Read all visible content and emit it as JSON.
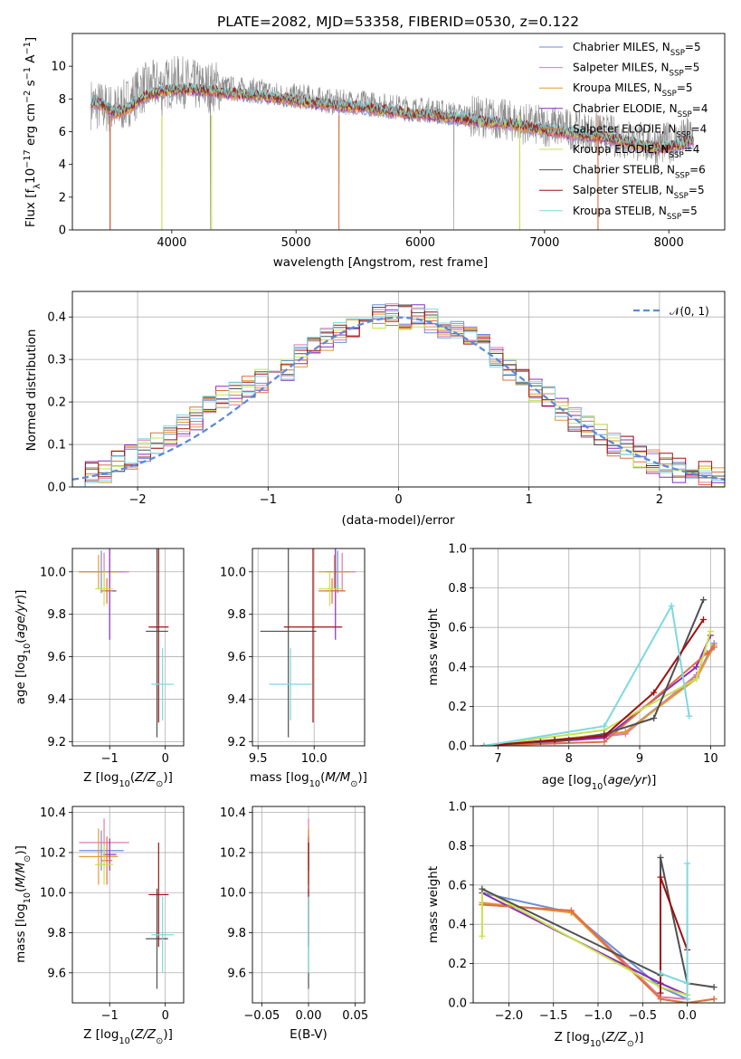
{
  "figure": {
    "title": "PLATE=2082, MJD=53358, FIBERID=0530, z=0.122"
  },
  "model_colors": {
    "Chabrier MILES": "#6a8ed8",
    "Salpeter MILES": "#e07ab0",
    "Kroupa MILES": "#e09a30",
    "Chabrier ELODIE": "#8a2bbf",
    "Salpeter ELODIE": "#e07040",
    "Kroupa ELODIE": "#c6e34a",
    "Chabrier STELIB": "#505050",
    "Salpeter STELIB": "#a01010",
    "Kroupa STELIB": "#7ed8e0"
  },
  "chart_data": [
    {
      "id": "spectrum",
      "type": "line",
      "title": "PLATE=2082, MJD=53358, FIBERID=0530, z=0.122",
      "xlabel": "wavelength [Angstrom, rest frame]",
      "ylabel": "Flux [f_λ 10^-17 erg cm^-2 s^-1 A^-1]",
      "xlim": [
        3200,
        8450
      ],
      "ylim": [
        0,
        12
      ],
      "xticks": [
        "4000",
        "5000",
        "6000",
        "7000",
        "8000"
      ],
      "yticks": [
        "0",
        "2",
        "4",
        "6",
        "8",
        "10"
      ],
      "grid": false,
      "legend_position": "top-right",
      "legend": [
        "Chabrier MILES, N_SSP=5",
        "Salpeter MILES, N_SSP=5",
        "Kroupa MILES, N_SSP=5",
        "Chabrier ELODIE, N_SSP=4",
        "Salpeter ELODIE, N_SSP=4",
        "Kroupa ELODIE, N_SSP=4",
        "Chabrier STELIB, N_SSP=6",
        "Salpeter STELIB, N_SSP=5",
        "Kroupa STELIB, N_SSP=5"
      ],
      "data_series": {
        "wavelength": [
          3350,
          3450,
          3550,
          3650,
          3750,
          3850,
          3950,
          4050,
          4150,
          4250,
          4350,
          4500,
          4700,
          4900,
          5100,
          5300,
          5500,
          5700,
          5900,
          6100,
          6300,
          6500,
          6700,
          6900,
          7100,
          7300,
          7500,
          7700,
          7900,
          8100,
          8200
        ],
        "flux": [
          7.7,
          7.5,
          7.3,
          7.8,
          8.6,
          8.8,
          8.9,
          9.1,
          8.9,
          8.7,
          8.8,
          8.6,
          8.5,
          8.2,
          8.1,
          7.8,
          7.8,
          7.6,
          7.4,
          7.3,
          7.0,
          6.9,
          6.7,
          6.4,
          6.3,
          6.0,
          5.8,
          5.5,
          5.2,
          5.5,
          5.8
        ]
      },
      "model_approx": {
        "wavelength": [
          3350,
          3450,
          3550,
          3650,
          3750,
          3850,
          3950,
          4100,
          4300,
          4500,
          4700,
          4900,
          5100,
          5300,
          5500,
          5700,
          5900,
          6100,
          6300,
          6500,
          6700,
          6900,
          7100,
          7300,
          7500,
          7700,
          7900,
          8100,
          8200
        ],
        "flux": [
          7.8,
          7.6,
          7.1,
          7.4,
          8.0,
          8.3,
          8.5,
          8.6,
          8.5,
          8.3,
          8.2,
          8.0,
          7.8,
          7.6,
          7.5,
          7.3,
          7.1,
          7.0,
          6.8,
          6.6,
          6.5,
          6.2,
          6.0,
          5.8,
          5.6,
          5.3,
          5.0,
          5.2,
          5.5
        ]
      },
      "absorption_features": [
        3500,
        3920,
        4310,
        5345,
        6270,
        6800,
        7430
      ]
    },
    {
      "id": "residuals",
      "type": "step",
      "xlabel": "(data-model)/error",
      "ylabel": "Normed distribution",
      "xlim": [
        -2.5,
        2.5
      ],
      "ylim": [
        0,
        0.46
      ],
      "xticks": [
        "−2",
        "−1",
        "0",
        "1",
        "2"
      ],
      "yticks": [
        "0.0",
        "0.1",
        "0.2",
        "0.3",
        "0.4"
      ],
      "grid": true,
      "legend_position": "top-right",
      "legend": [
        "𝒩(0, 1)"
      ],
      "bin_edges": [
        -2.5,
        -2.4,
        -2.3,
        -2.2,
        -2.1,
        -2.0,
        -1.9,
        -1.8,
        -1.7,
        -1.6,
        -1.5,
        -1.4,
        -1.3,
        -1.2,
        -1.1,
        -1.0,
        -0.9,
        -0.8,
        -0.7,
        -0.6,
        -0.5,
        -0.4,
        -0.3,
        -0.2,
        -0.1,
        0.0,
        0.1,
        0.2,
        0.3,
        0.4,
        0.5,
        0.6,
        0.7,
        0.8,
        0.9,
        1.0,
        1.1,
        1.2,
        1.3,
        1.4,
        1.5,
        1.6,
        1.7,
        1.8,
        1.9,
        2.0,
        2.1,
        2.2,
        2.3,
        2.4,
        2.5
      ],
      "histogram_mean": [
        0.02,
        0.03,
        0.04,
        0.06,
        0.07,
        0.09,
        0.1,
        0.12,
        0.14,
        0.16,
        0.19,
        0.21,
        0.22,
        0.24,
        0.25,
        0.27,
        0.28,
        0.31,
        0.33,
        0.35,
        0.36,
        0.38,
        0.39,
        0.4,
        0.41,
        0.4,
        0.4,
        0.39,
        0.38,
        0.37,
        0.35,
        0.33,
        0.3,
        0.28,
        0.25,
        0.23,
        0.21,
        0.18,
        0.16,
        0.14,
        0.12,
        0.1,
        0.09,
        0.07,
        0.06,
        0.05,
        0.04,
        0.03,
        0.03,
        0.02
      ],
      "normal_curve": {
        "mean": 0,
        "sigma": 1,
        "peak": 0.3989
      }
    },
    {
      "id": "age_vs_Z",
      "type": "scatter",
      "xlabel": "Z [log10(Z/Z☉)]",
      "ylabel": "age [log10(age/yr)]",
      "xlim": [
        -1.67,
        0.33
      ],
      "ylim": [
        9.18,
        10.11
      ],
      "xticks": [
        "−1",
        "0"
      ],
      "yticks": [
        "9.2",
        "9.4",
        "9.6",
        "9.8",
        "10.0"
      ],
      "grid": true,
      "points": [
        {
          "model": "Chabrier MILES",
          "x": -1.15,
          "xerr": 0.4,
          "y": 10.0,
          "yerr": 0.1
        },
        {
          "model": "Salpeter MILES",
          "x": -1.1,
          "xerr": 0.45,
          "y": 10.0,
          "yerr": 0.09
        },
        {
          "model": "Kroupa MILES",
          "x": -1.2,
          "xerr": 0.35,
          "y": 10.0,
          "yerr": 0.08
        },
        {
          "model": "Chabrier ELODIE",
          "x": -1.0,
          "xerr": 0.12,
          "y": 9.91,
          "yerr": 0.23
        },
        {
          "model": "Salpeter ELODIE",
          "x": -1.05,
          "xerr": 0.1,
          "y": 9.91,
          "yerr": 0.06
        },
        {
          "model": "Kroupa ELODIE",
          "x": -1.1,
          "xerr": 0.16,
          "y": 9.92,
          "yerr": 0.08
        },
        {
          "model": "Chabrier STELIB",
          "x": -0.15,
          "xerr": 0.2,
          "y": 9.72,
          "yerr": 0.5
        },
        {
          "model": "Salpeter STELIB",
          "x": -0.12,
          "xerr": 0.18,
          "y": 9.74,
          "yerr": 0.45
        },
        {
          "model": "Kroupa STELIB",
          "x": -0.05,
          "xerr": 0.2,
          "y": 9.47,
          "yerr": 0.17
        }
      ]
    },
    {
      "id": "age_vs_mass",
      "type": "scatter",
      "xlabel": "mass [log10(M/M☉)]",
      "ylabel": "",
      "xlim": [
        9.45,
        10.45
      ],
      "ylim": [
        9.18,
        10.11
      ],
      "xticks": [
        "9.5",
        "10.0"
      ],
      "yticks": [
        "9.2",
        "9.4",
        "9.6",
        "9.8",
        "10.0"
      ],
      "grid": true,
      "points": [
        {
          "model": "Chabrier MILES",
          "x": 10.21,
          "xerr": 0.1,
          "y": 10.0,
          "yerr": 0.1
        },
        {
          "model": "Salpeter MILES",
          "x": 10.25,
          "xerr": 0.12,
          "y": 10.0,
          "yerr": 0.09
        },
        {
          "model": "Kroupa MILES",
          "x": 10.18,
          "xerr": 0.14,
          "y": 10.0,
          "yerr": 0.08
        },
        {
          "model": "Chabrier ELODIE",
          "x": 10.19,
          "xerr": 0.08,
          "y": 9.91,
          "yerr": 0.23
        },
        {
          "model": "Salpeter ELODIE",
          "x": 10.16,
          "xerr": 0.12,
          "y": 9.91,
          "yerr": 0.06
        },
        {
          "model": "Kroupa ELODIE",
          "x": 10.14,
          "xerr": 0.1,
          "y": 9.92,
          "yerr": 0.08
        },
        {
          "model": "Chabrier STELIB",
          "x": 9.77,
          "xerr": 0.25,
          "y": 9.72,
          "yerr": 0.5
        },
        {
          "model": "Salpeter STELIB",
          "x": 9.99,
          "xerr": 0.26,
          "y": 9.74,
          "yerr": 0.45
        },
        {
          "model": "Kroupa STELIB",
          "x": 9.79,
          "xerr": 0.19,
          "y": 9.47,
          "yerr": 0.17
        }
      ]
    },
    {
      "id": "weight_vs_age",
      "type": "line",
      "xlabel": "age [log10(age/yr)]",
      "ylabel": "mass weight",
      "xlim": [
        6.65,
        10.2
      ],
      "ylim": [
        0,
        1
      ],
      "xticks": [
        "7",
        "8",
        "9",
        "10"
      ],
      "yticks": [
        "0.0",
        "0.2",
        "0.4",
        "0.6",
        "0.8",
        "1.0"
      ],
      "grid": true,
      "series": [
        {
          "model": "Chabrier MILES",
          "x": [
            6.8,
            7.8,
            8.8,
            9.8,
            10.05
          ],
          "y": [
            0.0,
            0.03,
            0.07,
            0.35,
            0.52
          ]
        },
        {
          "model": "Salpeter MILES",
          "x": [
            6.8,
            7.8,
            8.8,
            9.8,
            10.05
          ],
          "y": [
            0.0,
            0.02,
            0.06,
            0.36,
            0.5
          ]
        },
        {
          "model": "Kroupa MILES",
          "x": [
            6.8,
            7.8,
            8.8,
            9.8,
            10.05
          ],
          "y": [
            0.0,
            0.03,
            0.07,
            0.34,
            0.51
          ]
        },
        {
          "model": "Chabrier ELODIE",
          "x": [
            6.8,
            8.5,
            9.8,
            10.0
          ],
          "y": [
            0.0,
            0.04,
            0.4,
            0.56
          ]
        },
        {
          "model": "Salpeter ELODIE",
          "x": [
            6.8,
            8.5,
            9.95,
            10.05
          ],
          "y": [
            0.0,
            0.02,
            0.47,
            0.5
          ]
        },
        {
          "model": "Kroupa ELODIE",
          "x": [
            6.8,
            8.5,
            9.8,
            10.0
          ],
          "y": [
            0.0,
            0.08,
            0.34,
            0.58
          ]
        },
        {
          "model": "Chabrier STELIB",
          "x": [
            6.8,
            7.6,
            8.0,
            8.5,
            9.2,
            9.9
          ],
          "y": [
            0.0,
            0.02,
            0.03,
            0.06,
            0.14,
            0.74
          ]
        },
        {
          "model": "Salpeter STELIB",
          "x": [
            6.8,
            7.8,
            8.5,
            9.2,
            9.9
          ],
          "y": [
            0.0,
            0.03,
            0.05,
            0.27,
            0.64
          ]
        },
        {
          "model": "Kroupa STELIB",
          "x": [
            6.8,
            8.5,
            9.45,
            9.7
          ],
          "y": [
            0.0,
            0.1,
            0.71,
            0.15
          ]
        }
      ]
    },
    {
      "id": "mass_vs_Z",
      "type": "scatter",
      "xlabel": "Z [log10(Z/Z☉)]",
      "ylabel": "mass [log10(M/M☉)]",
      "xlim": [
        -1.67,
        0.33
      ],
      "ylim": [
        9.45,
        10.43
      ],
      "xticks": [
        "−1",
        "0"
      ],
      "yticks": [
        "9.6",
        "9.8",
        "10.0",
        "10.2",
        "10.4"
      ],
      "grid": true,
      "points": [
        {
          "model": "Chabrier MILES",
          "x": -1.15,
          "xerr": 0.4,
          "y": 10.21,
          "yerr": 0.1
        },
        {
          "model": "Salpeter MILES",
          "x": -1.1,
          "xerr": 0.45,
          "y": 10.25,
          "yerr": 0.12
        },
        {
          "model": "Kroupa MILES",
          "x": -1.2,
          "xerr": 0.35,
          "y": 10.18,
          "yerr": 0.14
        },
        {
          "model": "Chabrier ELODIE",
          "x": -1.0,
          "xerr": 0.12,
          "y": 10.19,
          "yerr": 0.08
        },
        {
          "model": "Salpeter ELODIE",
          "x": -1.05,
          "xerr": 0.1,
          "y": 10.16,
          "yerr": 0.12
        },
        {
          "model": "Kroupa ELODIE",
          "x": -1.1,
          "xerr": 0.16,
          "y": 10.14,
          "yerr": 0.1
        },
        {
          "model": "Chabrier STELIB",
          "x": -0.15,
          "xerr": 0.2,
          "y": 9.77,
          "yerr": 0.25
        },
        {
          "model": "Salpeter STELIB",
          "x": -0.12,
          "xerr": 0.18,
          "y": 9.99,
          "yerr": 0.26
        },
        {
          "model": "Kroupa STELIB",
          "x": -0.05,
          "xerr": 0.2,
          "y": 9.79,
          "yerr": 0.19
        }
      ]
    },
    {
      "id": "mass_vs_EBV",
      "type": "scatter",
      "xlabel": "E(B-V)",
      "ylabel": "",
      "xlim": [
        -0.06,
        0.06
      ],
      "ylim": [
        9.45,
        10.43
      ],
      "xticks": [
        "−0.05",
        "0.00",
        "0.05"
      ],
      "yticks": [
        "9.6",
        "9.8",
        "10.0",
        "10.2",
        "10.4"
      ],
      "grid": true,
      "points": [
        {
          "model": "Chabrier MILES",
          "x": 0.0,
          "xerr": 0.0,
          "y": 10.21,
          "yerr": 0.1
        },
        {
          "model": "Salpeter MILES",
          "x": 0.0,
          "xerr": 0.0,
          "y": 10.25,
          "yerr": 0.12
        },
        {
          "model": "Kroupa MILES",
          "x": 0.0,
          "xerr": 0.0,
          "y": 10.18,
          "yerr": 0.14
        },
        {
          "model": "Chabrier ELODIE",
          "x": 0.0,
          "xerr": 0.0,
          "y": 10.19,
          "yerr": 0.08
        },
        {
          "model": "Salpeter ELODIE",
          "x": 0.0,
          "xerr": 0.0,
          "y": 10.16,
          "yerr": 0.12
        },
        {
          "model": "Kroupa ELODIE",
          "x": 0.0,
          "xerr": 0.0,
          "y": 10.14,
          "yerr": 0.1
        },
        {
          "model": "Chabrier STELIB",
          "x": 0.0,
          "xerr": 0.0,
          "y": 9.77,
          "yerr": 0.25
        },
        {
          "model": "Salpeter STELIB",
          "x": 0.0,
          "xerr": 0.0,
          "y": 9.99,
          "yerr": 0.26
        },
        {
          "model": "Kroupa STELIB",
          "x": 0.0,
          "xerr": 0.0,
          "y": 9.79,
          "yerr": 0.19
        }
      ]
    },
    {
      "id": "weight_vs_Z",
      "type": "line",
      "xlabel": "Z [log10(Z/Z☉)]",
      "ylabel": "mass weight",
      "xlim": [
        -2.4,
        0.42
      ],
      "ylim": [
        0,
        1
      ],
      "xticks": [
        "−2.0",
        "−1.5",
        "−1.0",
        "−0.5",
        "0.0"
      ],
      "yticks": [
        "0.0",
        "0.2",
        "0.4",
        "0.6",
        "0.8",
        "1.0"
      ],
      "grid": true,
      "series": [
        {
          "model": "Chabrier MILES",
          "x": [
            -2.3,
            -1.3,
            -0.3,
            0.0
          ],
          "y": [
            0.56,
            0.46,
            0.08,
            0.02
          ]
        },
        {
          "model": "Salpeter MILES",
          "x": [
            -2.3,
            -1.3,
            -0.3,
            0.0
          ],
          "y": [
            0.5,
            0.47,
            0.03,
            0.02
          ]
        },
        {
          "model": "Kroupa MILES",
          "x": [
            -2.3,
            -1.3,
            -0.3,
            0.0,
            0.3
          ],
          "y": [
            0.51,
            0.46,
            0.02,
            0.0,
            0.02
          ]
        },
        {
          "model": "Chabrier ELODIE",
          "x": [
            -2.3,
            -0.3,
            0.0
          ],
          "y": [
            0.56,
            0.1,
            0.04
          ]
        },
        {
          "model": "Salpeter ELODIE",
          "x": [
            -2.3,
            -1.3,
            -0.3,
            0.0,
            0.3
          ],
          "y": [
            0.5,
            0.47,
            0.02,
            0.0,
            0.02
          ]
        },
        {
          "model": "Kroupa ELODIE",
          "x": [
            -2.3,
            -2.3,
            -0.3,
            0.0
          ],
          "y": [
            0.34,
            0.58,
            0.08,
            0.04
          ]
        },
        {
          "model": "Chabrier STELIB",
          "x": [
            -2.3,
            -0.3,
            -0.3,
            0.0,
            0.3
          ],
          "y": [
            0.58,
            0.14,
            0.74,
            0.1,
            0.08
          ]
        },
        {
          "model": "Salpeter STELIB",
          "x": [
            -0.3,
            -0.3,
            0.0
          ],
          "y": [
            0.05,
            0.64,
            0.27
          ]
        },
        {
          "model": "Kroupa STELIB",
          "x": [
            -0.3,
            0.0,
            0.0,
            0.0
          ],
          "y": [
            0.15,
            0.1,
            0.71,
            0.02
          ]
        }
      ]
    }
  ]
}
